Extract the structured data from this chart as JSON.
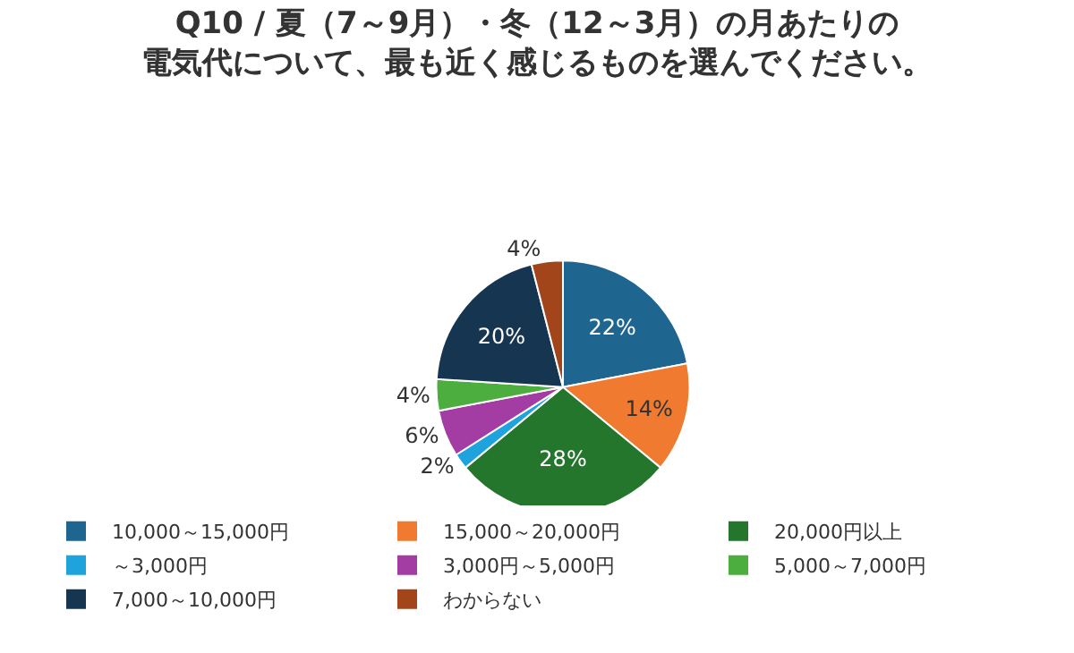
{
  "chart_data": {
    "type": "pie",
    "title": "Q10 / 夏（7～9月）・冬（12～3月）の月あたりの電気代について、最も近く感じるものを選んでください。",
    "categories": [
      "10,000～15,000円",
      "15,000～20,000円",
      "20,000円以上",
      "～3,000円",
      "3,000円～5,000円",
      "5,000～7,000円",
      "7,000～10,000円",
      "わからない"
    ],
    "values": [
      22,
      14,
      28,
      2,
      6,
      4,
      20,
      4
    ],
    "value_labels": [
      "22%",
      "14%",
      "28%",
      "2%",
      "6%",
      "4%",
      "20%",
      "4%"
    ],
    "colors": [
      "#1e6590",
      "#ef7a30",
      "#23762b",
      "#1fa3dc",
      "#a33ca3",
      "#4cae3e",
      "#163550",
      "#a3451b"
    ],
    "legend": "bottom"
  }
}
